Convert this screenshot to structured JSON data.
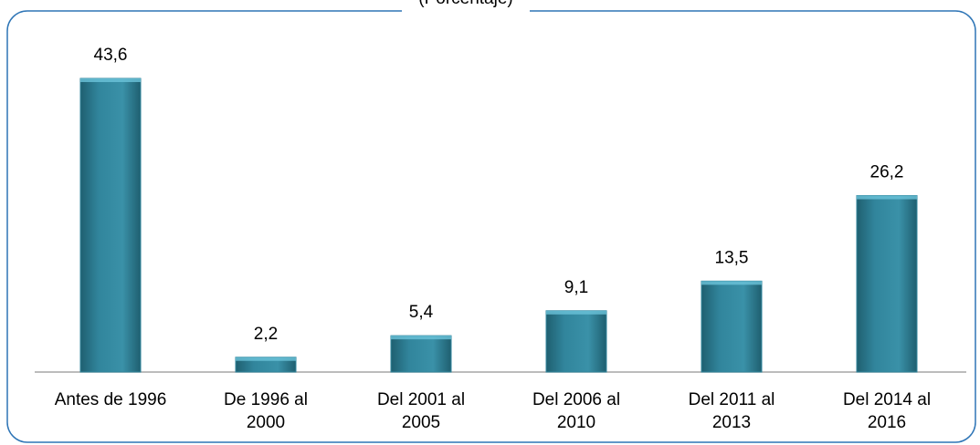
{
  "chart_data": {
    "type": "bar",
    "title": "(Porcentaje)",
    "categories": [
      "Antes de 1996",
      "De 1996 al\n2000",
      "Del 2001 al\n2005",
      "Del 2006 al\n2010",
      "Del 2011 al\n2013",
      "Del 2014 al\n2016"
    ],
    "values": [
      43.6,
      2.2,
      5.4,
      9.1,
      13.5,
      26.2
    ],
    "value_labels": [
      "43,6",
      "2,2",
      "5,4",
      "9,1",
      "13,5",
      "26,2"
    ],
    "color": "#31859c"
  }
}
